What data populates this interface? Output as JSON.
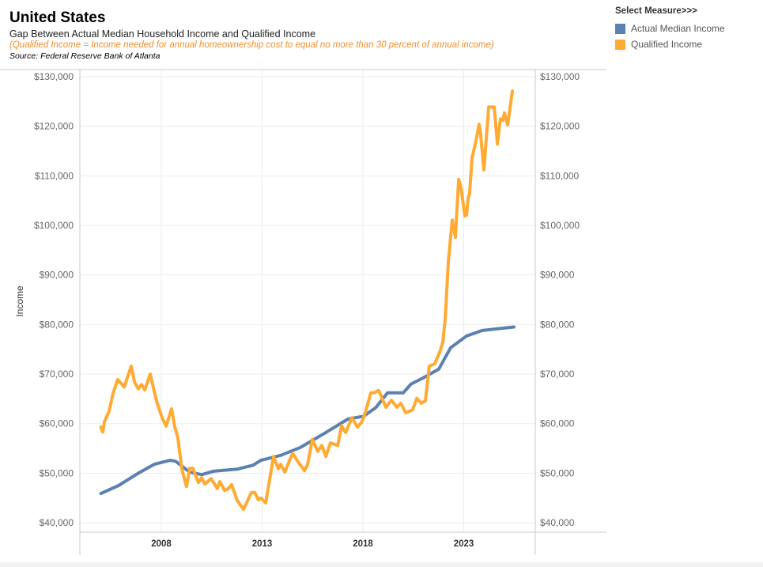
{
  "header": {
    "title": "United States",
    "subtitle": "Gap Between Actual Median Household Income and Qualified Income",
    "note": "(Qualified Income = Income needed for annual homeownership cost to equal no more than 30 percent of annual income)",
    "source": "Source: Federal Reserve Bank of Atlanta"
  },
  "legend": {
    "title": "Select Measure>>>",
    "items": [
      {
        "label": "Actual Median Income",
        "color": "#5b80b2"
      },
      {
        "label": "Qualified Income",
        "color": "#ffaa33"
      }
    ]
  },
  "chart_data": {
    "type": "line",
    "title": "United States",
    "xlabel": "",
    "ylabel": "Income",
    "ylim": [
      40000,
      130000
    ],
    "xlim": [
      2004,
      2026.5
    ],
    "grid": true,
    "legend": "top-right",
    "yticks": [
      40000,
      50000,
      60000,
      70000,
      80000,
      90000,
      100000,
      110000,
      120000,
      130000
    ],
    "ytick_labels": [
      "$40,000",
      "$50,000",
      "$60,000",
      "$70,000",
      "$80,000",
      "$90,000",
      "$100,000",
      "$110,000",
      "$120,000",
      "$130,000"
    ],
    "xticks": [
      2008,
      2013,
      2018,
      2023
    ],
    "xtick_labels": [
      "2008",
      "2013",
      "2018",
      "2023"
    ],
    "series": [
      {
        "name": "Actual Median Income",
        "color": "#5b80b2",
        "points": [
          [
            2005.0,
            45900
          ],
          [
            2005.88,
            47500
          ],
          [
            2006.86,
            50000
          ],
          [
            2007.65,
            51800
          ],
          [
            2008.43,
            52600
          ],
          [
            2008.71,
            52400
          ],
          [
            2009.41,
            50200
          ],
          [
            2010.0,
            49700
          ],
          [
            2010.59,
            50400
          ],
          [
            2011.76,
            50800
          ],
          [
            2012.55,
            51600
          ],
          [
            2012.94,
            52600
          ],
          [
            2013.92,
            53600
          ],
          [
            2014.9,
            55200
          ],
          [
            2016.08,
            58000
          ],
          [
            2017.25,
            60900
          ],
          [
            2018.04,
            61500
          ],
          [
            2018.63,
            63200
          ],
          [
            2019.22,
            66200
          ],
          [
            2020.0,
            66200
          ],
          [
            2020.39,
            68000
          ],
          [
            2020.98,
            69200
          ],
          [
            2021.76,
            71000
          ],
          [
            2022.35,
            75300
          ],
          [
            2023.14,
            77700
          ],
          [
            2023.92,
            78800
          ],
          [
            2025.49,
            79500
          ]
        ]
      },
      {
        "name": "Qualified Income",
        "color": "#ffaa33",
        "points": [
          [
            2005.0,
            59300
          ],
          [
            2005.1,
            58300
          ],
          [
            2005.18,
            60400
          ],
          [
            2005.41,
            62500
          ],
          [
            2005.61,
            66200
          ],
          [
            2005.84,
            68900
          ],
          [
            2006.16,
            67400
          ],
          [
            2006.51,
            71600
          ],
          [
            2006.67,
            68400
          ],
          [
            2006.86,
            67000
          ],
          [
            2007.02,
            67900
          ],
          [
            2007.18,
            66800
          ],
          [
            2007.45,
            70000
          ],
          [
            2007.76,
            64600
          ],
          [
            2008.04,
            61200
          ],
          [
            2008.24,
            59500
          ],
          [
            2008.51,
            63000
          ],
          [
            2008.67,
            59300
          ],
          [
            2008.82,
            57200
          ],
          [
            2009.02,
            50800
          ],
          [
            2009.25,
            47300
          ],
          [
            2009.41,
            51000
          ],
          [
            2009.57,
            51000
          ],
          [
            2009.84,
            48100
          ],
          [
            2010.0,
            49100
          ],
          [
            2010.16,
            47800
          ],
          [
            2010.47,
            48900
          ],
          [
            2010.78,
            46900
          ],
          [
            2010.9,
            48300
          ],
          [
            2011.14,
            46500
          ],
          [
            2011.33,
            46900
          ],
          [
            2011.49,
            47700
          ],
          [
            2011.76,
            44500
          ],
          [
            2012.08,
            42700
          ],
          [
            2012.47,
            46100
          ],
          [
            2012.63,
            46100
          ],
          [
            2012.82,
            44600
          ],
          [
            2012.94,
            45000
          ],
          [
            2013.18,
            44000
          ],
          [
            2013.33,
            47700
          ],
          [
            2013.57,
            53400
          ],
          [
            2013.8,
            50900
          ],
          [
            2013.92,
            51800
          ],
          [
            2014.12,
            50200
          ],
          [
            2014.51,
            54000
          ],
          [
            2014.82,
            52100
          ],
          [
            2015.1,
            50500
          ],
          [
            2015.25,
            51700
          ],
          [
            2015.49,
            56800
          ],
          [
            2015.76,
            54400
          ],
          [
            2015.96,
            55600
          ],
          [
            2016.16,
            53400
          ],
          [
            2016.39,
            56100
          ],
          [
            2016.75,
            55600
          ],
          [
            2016.94,
            59600
          ],
          [
            2017.14,
            58200
          ],
          [
            2017.45,
            61200
          ],
          [
            2017.73,
            59300
          ],
          [
            2017.96,
            60400
          ],
          [
            2018.16,
            62800
          ],
          [
            2018.39,
            66200
          ],
          [
            2018.55,
            66200
          ],
          [
            2018.78,
            66700
          ],
          [
            2019.14,
            63300
          ],
          [
            2019.41,
            64700
          ],
          [
            2019.69,
            63300
          ],
          [
            2019.88,
            64100
          ],
          [
            2020.12,
            62200
          ],
          [
            2020.47,
            62800
          ],
          [
            2020.67,
            65100
          ],
          [
            2020.9,
            64100
          ],
          [
            2021.1,
            64600
          ],
          [
            2021.29,
            71600
          ],
          [
            2021.57,
            72100
          ],
          [
            2021.84,
            74800
          ],
          [
            2021.96,
            76400
          ],
          [
            2022.08,
            81000
          ],
          [
            2022.24,
            92800
          ],
          [
            2022.43,
            101100
          ],
          [
            2022.59,
            97600
          ],
          [
            2022.75,
            109300
          ],
          [
            2022.86,
            107700
          ],
          [
            2023.06,
            101900
          ],
          [
            2023.14,
            102100
          ],
          [
            2023.22,
            105600
          ],
          [
            2023.29,
            106400
          ],
          [
            2023.41,
            113600
          ],
          [
            2023.61,
            117100
          ],
          [
            2023.76,
            120400
          ],
          [
            2023.84,
            118400
          ],
          [
            2024.0,
            111200
          ],
          [
            2024.24,
            123900
          ],
          [
            2024.51,
            123900
          ],
          [
            2024.67,
            116400
          ],
          [
            2024.82,
            121500
          ],
          [
            2024.94,
            121200
          ],
          [
            2025.02,
            122700
          ],
          [
            2025.18,
            120300
          ],
          [
            2025.41,
            127100
          ]
        ]
      }
    ]
  }
}
